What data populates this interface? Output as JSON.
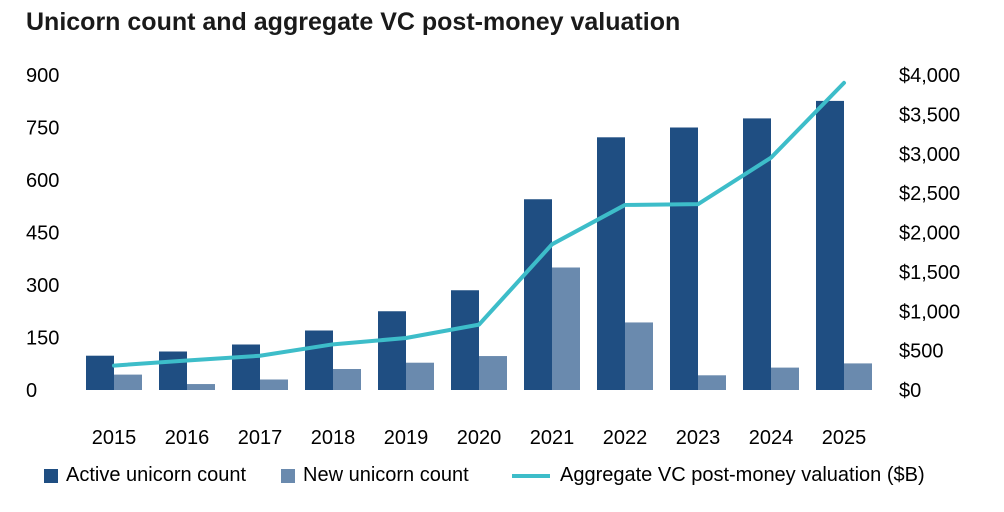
{
  "chart_data": {
    "type": "bar+line",
    "title": "Unicorn count and aggregate VC post-money valuation",
    "categories": [
      "2015",
      "2016",
      "2017",
      "2018",
      "2019",
      "2020",
      "2021",
      "2022",
      "2023",
      "2024",
      "2025"
    ],
    "series": [
      {
        "name": "Active unicorn count",
        "type": "bar",
        "axis": "left",
        "color": "#1f4e82",
        "values": [
          98,
          110,
          130,
          170,
          225,
          285,
          545,
          722,
          750,
          776,
          826
        ]
      },
      {
        "name": "New unicorn count",
        "type": "bar",
        "axis": "left",
        "color": "#6a8aae",
        "values": [
          44,
          17,
          30,
          60,
          78,
          97,
          350,
          193,
          42,
          64,
          76
        ]
      },
      {
        "name": "Aggregate VC post-money valuation ($B)",
        "type": "line",
        "axis": "right",
        "color": "#3dbdc9",
        "values": [
          310,
          375,
          435,
          580,
          660,
          830,
          1850,
          2350,
          2360,
          2950,
          3900
        ]
      }
    ],
    "yleft": {
      "min": 0,
      "max": 900,
      "ticks": [
        0,
        150,
        300,
        450,
        600,
        750,
        900
      ],
      "tick_labels": [
        "0",
        "150",
        "300",
        "450",
        "600",
        "750",
        "900"
      ]
    },
    "yright": {
      "min": 0,
      "max": 4000,
      "ticks": [
        0,
        500,
        1000,
        1500,
        2000,
        2500,
        3000,
        3500,
        4000
      ],
      "tick_labels": [
        "$0",
        "$500",
        "$1,000",
        "$1,500",
        "$2,000",
        "$2,500",
        "$3,000",
        "$3,500",
        "$4,000"
      ]
    },
    "legend_position": "bottom",
    "grid": false
  },
  "legend": {
    "active": "Active unicorn count",
    "new": "New unicorn count",
    "valuation": "Aggregate VC post-money valuation ($B)"
  }
}
